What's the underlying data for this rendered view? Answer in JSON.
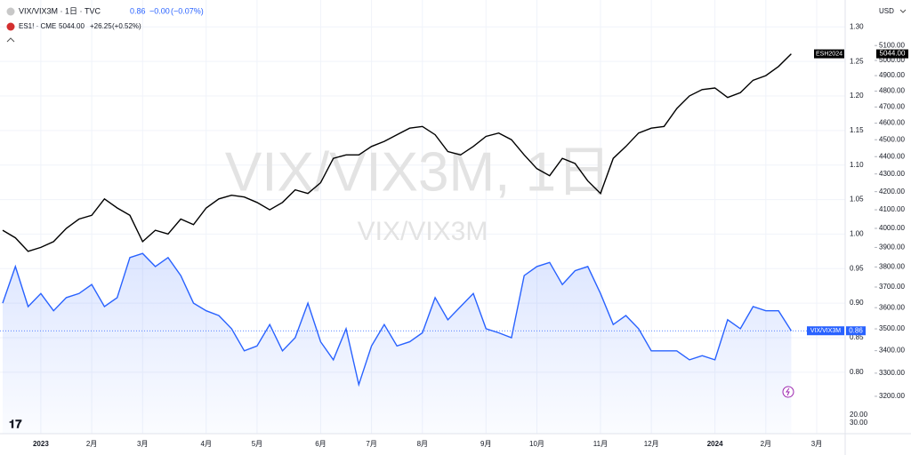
{
  "chart_data": {
    "type": "line",
    "header": {
      "main": {
        "title": "VIX/VIX3M · 1日 · TVC",
        "value": "0.86",
        "change": "−0.00",
        "change_pct": "(−0.07%)"
      },
      "compare": {
        "title": "ES1! · CME",
        "value": "5044.00",
        "change": "+26.25",
        "change_pct": "(+0.52%)"
      }
    },
    "watermark": {
      "title": "VIX/VIX3M, 1日",
      "subtitle": "VIX/VIX3M"
    },
    "currency": "USD",
    "extra_scale_labels": [
      "20.00",
      "30.00"
    ],
    "categories": [
      null,
      null,
      null,
      "2023",
      null,
      null,
      null,
      "2月",
      null,
      null,
      null,
      "3月",
      null,
      null,
      null,
      null,
      "4月",
      null,
      null,
      null,
      "5月",
      null,
      null,
      null,
      null,
      "6月",
      null,
      null,
      null,
      "7月",
      null,
      null,
      null,
      "8月",
      null,
      null,
      null,
      null,
      "9月",
      null,
      null,
      null,
      "10月",
      null,
      null,
      null,
      null,
      "11月",
      null,
      null,
      null,
      "12月",
      null,
      null,
      null,
      null,
      "2024",
      null,
      null,
      null,
      "2月",
      null,
      null,
      null,
      "3月"
    ],
    "series": [
      {
        "name": "VIX/VIX3M",
        "color": "#2962ff",
        "axis": "y",
        "values": [
          0.9,
          0.953,
          0.895,
          0.914,
          0.889,
          0.908,
          0.914,
          0.927,
          0.895,
          0.908,
          0.966,
          0.972,
          0.953,
          0.966,
          0.94,
          0.9,
          0.889,
          0.882,
          0.863,
          0.831,
          0.838,
          0.869,
          0.831,
          0.85,
          0.9,
          0.844,
          0.818,
          0.863,
          0.782,
          0.838,
          0.869,
          0.838,
          0.844,
          0.857,
          0.908,
          0.876,
          0.895,
          0.914,
          0.863,
          0.857,
          0.85,
          0.94,
          0.953,
          0.959,
          0.927,
          0.947,
          0.953,
          0.914,
          0.869,
          0.882,
          0.863,
          0.831,
          0.831,
          0.831,
          0.818,
          0.824,
          0.818,
          0.876,
          0.863,
          0.895,
          0.889,
          0.889,
          0.86,
          null,
          null
        ]
      },
      {
        "name": "ESH2024",
        "color": "#000000",
        "axis": "y2",
        "values": [
          3990,
          3950,
          3880,
          3900,
          3930,
          4000,
          4050,
          4070,
          4160,
          4110,
          4070,
          3930,
          3990,
          3970,
          4050,
          4020,
          4110,
          4160,
          4180,
          4170,
          4140,
          4100,
          4140,
          4210,
          4190,
          4250,
          4390,
          4410,
          4410,
          4460,
          4490,
          4530,
          4570,
          4580,
          4530,
          4430,
          4410,
          4460,
          4520,
          4540,
          4500,
          4410,
          4330,
          4290,
          4390,
          4360,
          4260,
          4190,
          4390,
          4460,
          4540,
          4570,
          4580,
          4690,
          4770,
          4810,
          4820,
          4760,
          4790,
          4870,
          4900,
          4960,
          5044,
          null,
          null
        ]
      }
    ],
    "ylim": [
      0.711,
      1.339
    ],
    "yticks": [
      {
        "value": 0.8,
        "label": "0.80"
      },
      {
        "value": 0.85,
        "label": "0.85"
      },
      {
        "value": 0.9,
        "label": "0.90"
      },
      {
        "value": 0.95,
        "label": "0.95"
      },
      {
        "value": 1.0,
        "label": "1.00"
      },
      {
        "value": 1.05,
        "label": "1.05"
      },
      {
        "value": 1.1,
        "label": "1.10"
      },
      {
        "value": 1.15,
        "label": "1.15"
      },
      {
        "value": 1.2,
        "label": "1.20"
      },
      {
        "value": 1.25,
        "label": "1.25"
      },
      {
        "value": 1.3,
        "label": "1.30"
      }
    ],
    "y2lim": [
      3045,
      5418
    ],
    "y2log": true,
    "y2ticks": [
      {
        "value": 3200,
        "label": "3200.00"
      },
      {
        "value": 3300,
        "label": "3300.00"
      },
      {
        "value": 3400,
        "label": "3400.00"
      },
      {
        "value": 3500,
        "label": "3500.00"
      },
      {
        "value": 3600,
        "label": "3600.00"
      },
      {
        "value": 3700,
        "label": "3700.00"
      },
      {
        "value": 3800,
        "label": "3800.00"
      },
      {
        "value": 3900,
        "label": "3900.00"
      },
      {
        "value": 4000,
        "label": "4000.00"
      },
      {
        "value": 4100,
        "label": "4100.00"
      },
      {
        "value": 4200,
        "label": "4200.00"
      },
      {
        "value": 4300,
        "label": "4300.00"
      },
      {
        "value": 4400,
        "label": "4400.00"
      },
      {
        "value": 4500,
        "label": "4500.00"
      },
      {
        "value": 4600,
        "label": "4600.00"
      },
      {
        "value": 4700,
        "label": "4700.00"
      },
      {
        "value": 4800,
        "label": "4800.00"
      },
      {
        "value": 4900,
        "label": "4900.00"
      },
      {
        "value": 5000,
        "label": "5000.00"
      },
      {
        "value": 5100,
        "label": "5100.00"
      }
    ],
    "grid": true
  }
}
